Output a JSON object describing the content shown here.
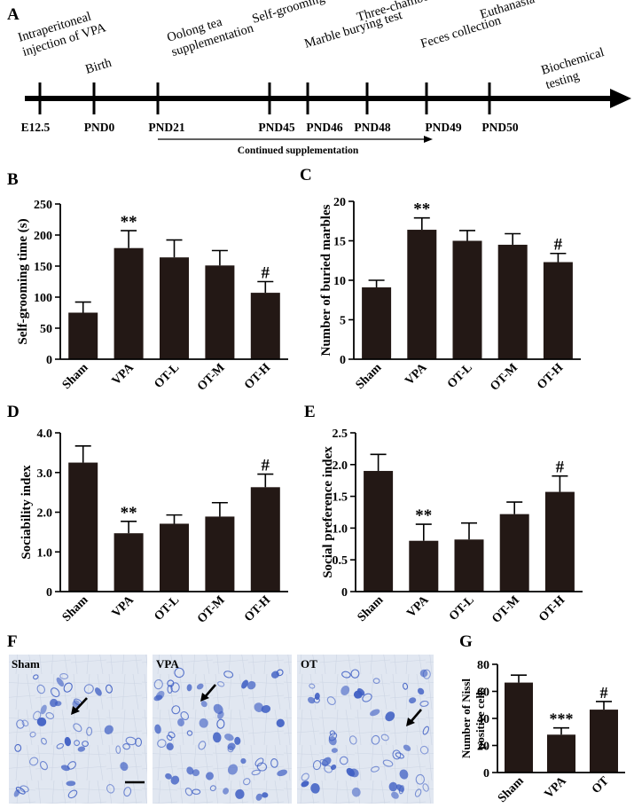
{
  "panels": {
    "A": "A",
    "B": "B",
    "C": "C",
    "D": "D",
    "E": "E",
    "F": "F",
    "G": "G"
  },
  "timeline": {
    "events": [
      {
        "id": "vpa",
        "lines": [
          "Intraperitoneal",
          "injection of VPA"
        ]
      },
      {
        "id": "birth",
        "lines": [
          "Birth"
        ]
      },
      {
        "id": "oolong",
        "lines": [
          "Oolong tea",
          "supplementation"
        ]
      },
      {
        "id": "selfgroom",
        "lines": [
          "Self-grooming test"
        ]
      },
      {
        "id": "marble",
        "lines": [
          "Marble burying test"
        ]
      },
      {
        "id": "threechamber",
        "lines": [
          "Three-chamber test"
        ]
      },
      {
        "id": "feces",
        "lines": [
          "Feces collection"
        ]
      },
      {
        "id": "euthanasia",
        "lines": [
          "Euthanasia"
        ]
      },
      {
        "id": "biochem",
        "lines": [
          "Biochemical",
          "testing"
        ]
      }
    ],
    "days": [
      "E12.5",
      "PND0",
      "PND21",
      "PND45",
      "PND46",
      "PND48",
      "PND49",
      "PND50"
    ],
    "continued_label": "Continued supplementation"
  },
  "chart_data": [
    {
      "panel": "B",
      "type": "bar",
      "categories": [
        "Sham",
        "VPA",
        "OT-L",
        "OT-M",
        "OT-H"
      ],
      "values": [
        75,
        179,
        164,
        151,
        107
      ],
      "errors": [
        17,
        28,
        28,
        24,
        18
      ],
      "annotations": [
        "",
        "**",
        "",
        "",
        "#"
      ],
      "ylabel": "Self-grooming time (s)",
      "ylim": [
        0,
        250
      ],
      "yticks": [
        "0",
        "50",
        "100",
        "150",
        "200",
        "250"
      ]
    },
    {
      "panel": "C",
      "type": "bar",
      "categories": [
        "Sham",
        "VPA",
        "OT-L",
        "OT-M",
        "OT-H"
      ],
      "values": [
        9.1,
        16.4,
        15.0,
        14.5,
        12.3
      ],
      "errors": [
        0.9,
        1.5,
        1.3,
        1.4,
        1.1
      ],
      "annotations": [
        "",
        "**",
        "",
        "",
        "#"
      ],
      "ylabel": "Number of buried marbles",
      "ylim": [
        0,
        20
      ],
      "yticks": [
        "0",
        "5",
        "10",
        "15",
        "20"
      ]
    },
    {
      "panel": "D",
      "type": "bar",
      "categories": [
        "Sham",
        "VPA",
        "OT-L",
        "OT-M",
        "OT-H"
      ],
      "values": [
        3.25,
        1.47,
        1.71,
        1.89,
        2.63
      ],
      "errors": [
        0.42,
        0.3,
        0.22,
        0.35,
        0.33
      ],
      "annotations": [
        "",
        "**",
        "",
        "",
        "#"
      ],
      "ylabel": "Sociability index",
      "ylim": [
        0,
        4
      ],
      "yticks": [
        "0",
        "1.0",
        "2.0",
        "3.0",
        "4.0"
      ]
    },
    {
      "panel": "E",
      "type": "bar",
      "categories": [
        "Sham",
        "VPA",
        "OT-L",
        "OT-M",
        "OT-H"
      ],
      "values": [
        1.9,
        0.8,
        0.82,
        1.22,
        1.57
      ],
      "errors": [
        0.26,
        0.26,
        0.26,
        0.19,
        0.25
      ],
      "annotations": [
        "",
        "**",
        "",
        "",
        "#"
      ],
      "ylabel": "Social preference index",
      "ylim": [
        0,
        2.5
      ],
      "yticks": [
        "0",
        "0.5",
        "1.0",
        "1.5",
        "2.0",
        "2.5"
      ]
    },
    {
      "panel": "G",
      "type": "bar",
      "categories": [
        "Sham",
        "VPA",
        "OT"
      ],
      "values": [
        66.5,
        28,
        46.5
      ],
      "errors": [
        5.5,
        5,
        6
      ],
      "annotations": [
        "",
        "***",
        "#"
      ],
      "ylabel_lines": [
        "Number of Nissl",
        "positive cells"
      ],
      "ylim": [
        0,
        80
      ],
      "yticks": [
        "0",
        "20",
        "40",
        "60",
        "80"
      ]
    }
  ],
  "micrographs": {
    "labels": [
      "Sham",
      "VPA",
      "OT"
    ],
    "stain_color": "#3f5fc4",
    "background_color": "#dfe6f1"
  },
  "colors": {
    "bar": "#231815",
    "axis": "#000000"
  }
}
